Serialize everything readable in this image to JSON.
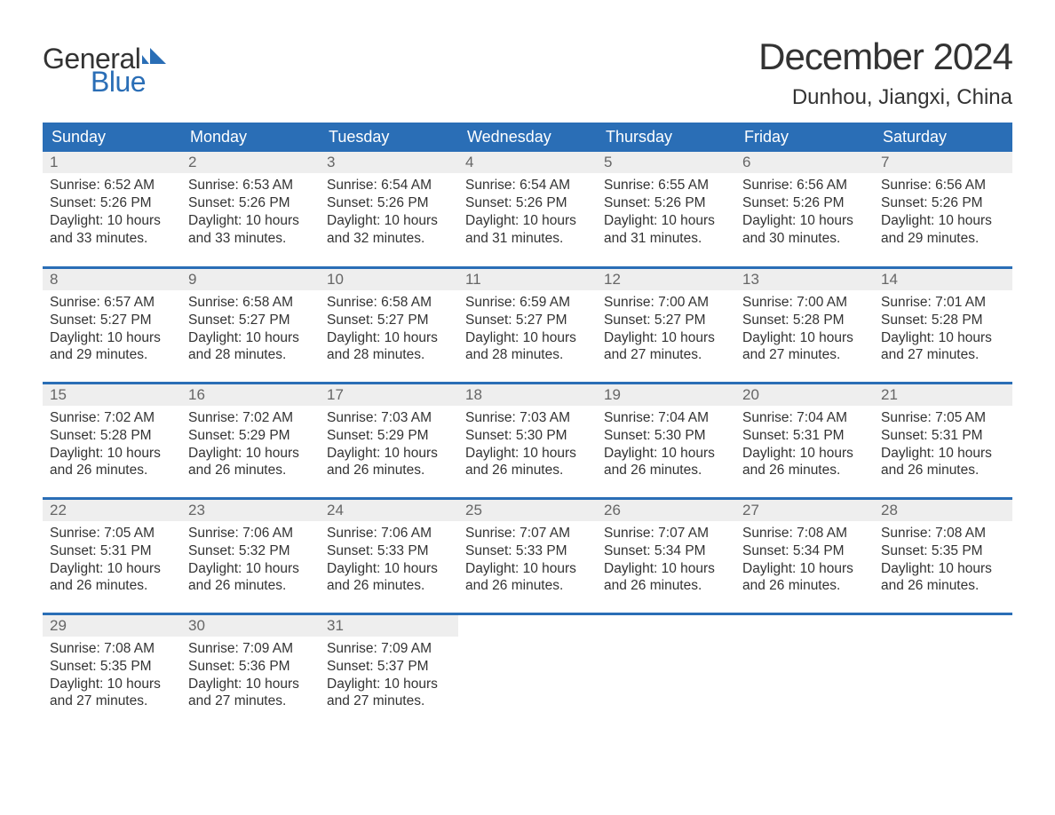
{
  "brand": {
    "word1": "General",
    "word2": "Blue",
    "word1_color": "#333333",
    "word2_color": "#2a6eb6",
    "mark_color": "#2a6eb6"
  },
  "title": "December 2024",
  "location": "Dunhou, Jiangxi, China",
  "colors": {
    "header_bg": "#2a6eb6",
    "header_text": "#ffffff",
    "daynum_bg": "#eeeeee",
    "daynum_text": "#666666",
    "row_divider": "#2a6eb6",
    "body_text": "#333333",
    "page_bg": "#ffffff"
  },
  "typography": {
    "title_fontsize": 42,
    "location_fontsize": 24,
    "header_fontsize": 18,
    "daynum_fontsize": 17,
    "cell_fontsize": 15.5
  },
  "layout": {
    "columns": 7,
    "rows": 5,
    "type": "table"
  },
  "weekdays": [
    "Sunday",
    "Monday",
    "Tuesday",
    "Wednesday",
    "Thursday",
    "Friday",
    "Saturday"
  ],
  "weeks": [
    [
      {
        "n": "1",
        "sunrise": "Sunrise: 6:52 AM",
        "sunset": "Sunset: 5:26 PM",
        "d1": "Daylight: 10 hours",
        "d2": "and 33 minutes."
      },
      {
        "n": "2",
        "sunrise": "Sunrise: 6:53 AM",
        "sunset": "Sunset: 5:26 PM",
        "d1": "Daylight: 10 hours",
        "d2": "and 33 minutes."
      },
      {
        "n": "3",
        "sunrise": "Sunrise: 6:54 AM",
        "sunset": "Sunset: 5:26 PM",
        "d1": "Daylight: 10 hours",
        "d2": "and 32 minutes."
      },
      {
        "n": "4",
        "sunrise": "Sunrise: 6:54 AM",
        "sunset": "Sunset: 5:26 PM",
        "d1": "Daylight: 10 hours",
        "d2": "and 31 minutes."
      },
      {
        "n": "5",
        "sunrise": "Sunrise: 6:55 AM",
        "sunset": "Sunset: 5:26 PM",
        "d1": "Daylight: 10 hours",
        "d2": "and 31 minutes."
      },
      {
        "n": "6",
        "sunrise": "Sunrise: 6:56 AM",
        "sunset": "Sunset: 5:26 PM",
        "d1": "Daylight: 10 hours",
        "d2": "and 30 minutes."
      },
      {
        "n": "7",
        "sunrise": "Sunrise: 6:56 AM",
        "sunset": "Sunset: 5:26 PM",
        "d1": "Daylight: 10 hours",
        "d2": "and 29 minutes."
      }
    ],
    [
      {
        "n": "8",
        "sunrise": "Sunrise: 6:57 AM",
        "sunset": "Sunset: 5:27 PM",
        "d1": "Daylight: 10 hours",
        "d2": "and 29 minutes."
      },
      {
        "n": "9",
        "sunrise": "Sunrise: 6:58 AM",
        "sunset": "Sunset: 5:27 PM",
        "d1": "Daylight: 10 hours",
        "d2": "and 28 minutes."
      },
      {
        "n": "10",
        "sunrise": "Sunrise: 6:58 AM",
        "sunset": "Sunset: 5:27 PM",
        "d1": "Daylight: 10 hours",
        "d2": "and 28 minutes."
      },
      {
        "n": "11",
        "sunrise": "Sunrise: 6:59 AM",
        "sunset": "Sunset: 5:27 PM",
        "d1": "Daylight: 10 hours",
        "d2": "and 28 minutes."
      },
      {
        "n": "12",
        "sunrise": "Sunrise: 7:00 AM",
        "sunset": "Sunset: 5:27 PM",
        "d1": "Daylight: 10 hours",
        "d2": "and 27 minutes."
      },
      {
        "n": "13",
        "sunrise": "Sunrise: 7:00 AM",
        "sunset": "Sunset: 5:28 PM",
        "d1": "Daylight: 10 hours",
        "d2": "and 27 minutes."
      },
      {
        "n": "14",
        "sunrise": "Sunrise: 7:01 AM",
        "sunset": "Sunset: 5:28 PM",
        "d1": "Daylight: 10 hours",
        "d2": "and 27 minutes."
      }
    ],
    [
      {
        "n": "15",
        "sunrise": "Sunrise: 7:02 AM",
        "sunset": "Sunset: 5:28 PM",
        "d1": "Daylight: 10 hours",
        "d2": "and 26 minutes."
      },
      {
        "n": "16",
        "sunrise": "Sunrise: 7:02 AM",
        "sunset": "Sunset: 5:29 PM",
        "d1": "Daylight: 10 hours",
        "d2": "and 26 minutes."
      },
      {
        "n": "17",
        "sunrise": "Sunrise: 7:03 AM",
        "sunset": "Sunset: 5:29 PM",
        "d1": "Daylight: 10 hours",
        "d2": "and 26 minutes."
      },
      {
        "n": "18",
        "sunrise": "Sunrise: 7:03 AM",
        "sunset": "Sunset: 5:30 PM",
        "d1": "Daylight: 10 hours",
        "d2": "and 26 minutes."
      },
      {
        "n": "19",
        "sunrise": "Sunrise: 7:04 AM",
        "sunset": "Sunset: 5:30 PM",
        "d1": "Daylight: 10 hours",
        "d2": "and 26 minutes."
      },
      {
        "n": "20",
        "sunrise": "Sunrise: 7:04 AM",
        "sunset": "Sunset: 5:31 PM",
        "d1": "Daylight: 10 hours",
        "d2": "and 26 minutes."
      },
      {
        "n": "21",
        "sunrise": "Sunrise: 7:05 AM",
        "sunset": "Sunset: 5:31 PM",
        "d1": "Daylight: 10 hours",
        "d2": "and 26 minutes."
      }
    ],
    [
      {
        "n": "22",
        "sunrise": "Sunrise: 7:05 AM",
        "sunset": "Sunset: 5:31 PM",
        "d1": "Daylight: 10 hours",
        "d2": "and 26 minutes."
      },
      {
        "n": "23",
        "sunrise": "Sunrise: 7:06 AM",
        "sunset": "Sunset: 5:32 PM",
        "d1": "Daylight: 10 hours",
        "d2": "and 26 minutes."
      },
      {
        "n": "24",
        "sunrise": "Sunrise: 7:06 AM",
        "sunset": "Sunset: 5:33 PM",
        "d1": "Daylight: 10 hours",
        "d2": "and 26 minutes."
      },
      {
        "n": "25",
        "sunrise": "Sunrise: 7:07 AM",
        "sunset": "Sunset: 5:33 PM",
        "d1": "Daylight: 10 hours",
        "d2": "and 26 minutes."
      },
      {
        "n": "26",
        "sunrise": "Sunrise: 7:07 AM",
        "sunset": "Sunset: 5:34 PM",
        "d1": "Daylight: 10 hours",
        "d2": "and 26 minutes."
      },
      {
        "n": "27",
        "sunrise": "Sunrise: 7:08 AM",
        "sunset": "Sunset: 5:34 PM",
        "d1": "Daylight: 10 hours",
        "d2": "and 26 minutes."
      },
      {
        "n": "28",
        "sunrise": "Sunrise: 7:08 AM",
        "sunset": "Sunset: 5:35 PM",
        "d1": "Daylight: 10 hours",
        "d2": "and 26 minutes."
      }
    ],
    [
      {
        "n": "29",
        "sunrise": "Sunrise: 7:08 AM",
        "sunset": "Sunset: 5:35 PM",
        "d1": "Daylight: 10 hours",
        "d2": "and 27 minutes."
      },
      {
        "n": "30",
        "sunrise": "Sunrise: 7:09 AM",
        "sunset": "Sunset: 5:36 PM",
        "d1": "Daylight: 10 hours",
        "d2": "and 27 minutes."
      },
      {
        "n": "31",
        "sunrise": "Sunrise: 7:09 AM",
        "sunset": "Sunset: 5:37 PM",
        "d1": "Daylight: 10 hours",
        "d2": "and 27 minutes."
      },
      {
        "empty": true
      },
      {
        "empty": true
      },
      {
        "empty": true
      },
      {
        "empty": true
      }
    ]
  ]
}
